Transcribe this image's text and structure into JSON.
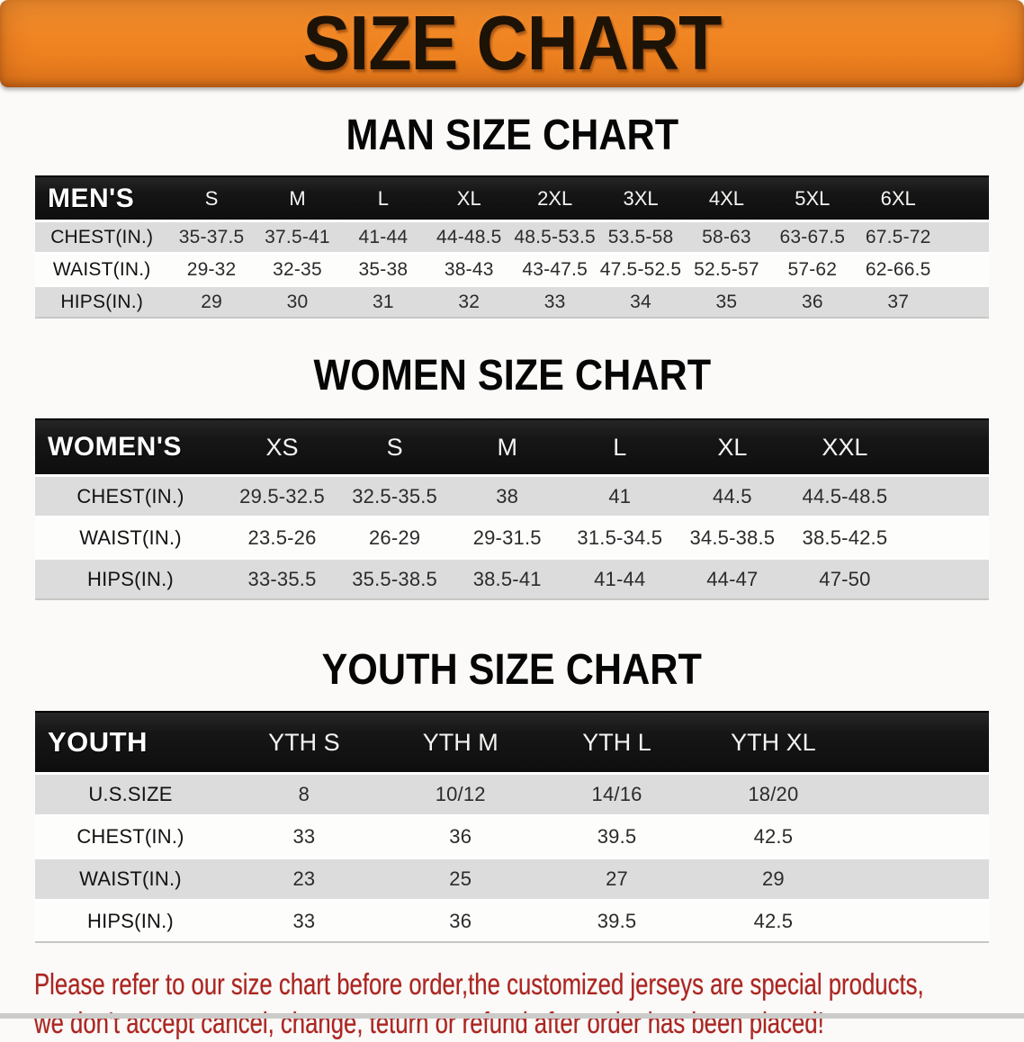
{
  "banner": {
    "title": "SIZE CHART"
  },
  "sections": [
    {
      "heading": "MAN SIZE CHART"
    },
    {
      "heading": "WOMEN SIZE CHART"
    },
    {
      "heading": "YOUTH SIZE CHART"
    }
  ],
  "chart_data": [
    {
      "type": "table",
      "title": "MAN SIZE CHART",
      "corner": "MEN'S",
      "columns": [
        "S",
        "M",
        "L",
        "XL",
        "2XL",
        "3XL",
        "4XL",
        "5XL",
        "6XL"
      ],
      "rows": [
        {
          "label": "CHEST(IN.)",
          "values": [
            "35-37.5",
            "37.5-41",
            "41-44",
            "44-48.5",
            "48.5-53.5",
            "53.5-58",
            "58-63",
            "63-67.5",
            "67.5-72"
          ]
        },
        {
          "label": "WAIST(IN.)",
          "values": [
            "29-32",
            "32-35",
            "35-38",
            "38-43",
            "43-47.5",
            "47.5-52.5",
            "52.5-57",
            "57-62",
            "62-66.5"
          ]
        },
        {
          "label": "HIPS(IN.)",
          "values": [
            "29",
            "30",
            "31",
            "32",
            "33",
            "34",
            "35",
            "36",
            "37"
          ]
        }
      ]
    },
    {
      "type": "table",
      "title": "WOMEN SIZE CHART",
      "corner": "WOMEN'S",
      "columns": [
        "XS",
        "S",
        "M",
        "L",
        "XL",
        "XXL"
      ],
      "rows": [
        {
          "label": "CHEST(IN.)",
          "values": [
            "29.5-32.5",
            "32.5-35.5",
            "38",
            "41",
            "44.5",
            "44.5-48.5"
          ]
        },
        {
          "label": "WAIST(IN.)",
          "values": [
            "23.5-26",
            "26-29",
            "29-31.5",
            "31.5-34.5",
            "34.5-38.5",
            "38.5-42.5"
          ]
        },
        {
          "label": "HIPS(IN.)",
          "values": [
            "33-35.5",
            "35.5-38.5",
            "38.5-41",
            "41-44",
            "44-47",
            "47-50"
          ]
        }
      ]
    },
    {
      "type": "table",
      "title": "YOUTH SIZE CHART",
      "corner": "YOUTH",
      "columns": [
        "YTH S",
        "YTH M",
        "YTH L",
        "YTH XL"
      ],
      "rows": [
        {
          "label": "U.S.SIZE",
          "values": [
            "8",
            "10/12",
            "14/16",
            "18/20"
          ]
        },
        {
          "label": "CHEST(IN.)",
          "values": [
            "33",
            "36",
            "39.5",
            "42.5"
          ]
        },
        {
          "label": "WAIST(IN.)",
          "values": [
            "23",
            "25",
            "27",
            "29"
          ]
        },
        {
          "label": "HIPS(IN.)",
          "values": [
            "33",
            "36",
            "39.5",
            "42.5"
          ]
        }
      ]
    }
  ],
  "disclaimer": {
    "line1": "Please refer to our size chart before order,the customized jerseys are special products,",
    "line2": "we don't accept cancel, change, teturn or refund after order has been placed!"
  },
  "colors": {
    "banner_orange": "#EF8220",
    "header_black": "#161616",
    "row_gray": "#DCDCDC",
    "disclaimer_red": "#AC2420",
    "page_bg": "#FBFAF8"
  }
}
